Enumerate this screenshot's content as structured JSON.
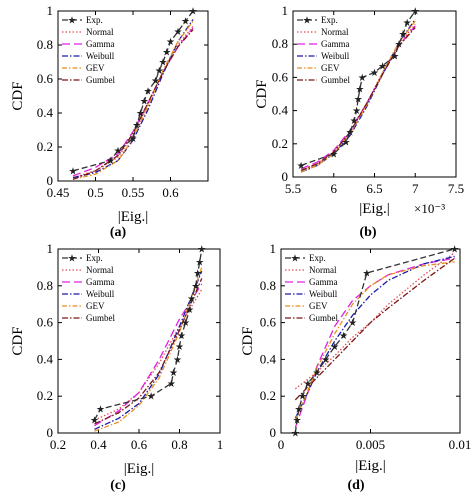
{
  "series_style": [
    {
      "name": "Exp.",
      "color": "#333333",
      "dash": "6,3",
      "marker": "★"
    },
    {
      "name": "Normal",
      "color": "#e05050",
      "dash": "1.5,2",
      "marker": ""
    },
    {
      "name": "Gamma",
      "color": "#e020e0",
      "dash": "8,4",
      "marker": ""
    },
    {
      "name": "Weibull",
      "color": "#1a1aa8",
      "dash": "6,2,1.5,2",
      "marker": ""
    },
    {
      "name": "GEV",
      "color": "#e89020",
      "dash": "5,2,1.5,2",
      "marker": ""
    },
    {
      "name": "Gumbel",
      "color": "#7a1818",
      "dash": "6,2,1.5,2",
      "marker": ""
    }
  ],
  "chart_data": [
    {
      "type": "line",
      "panel_label": "(a)",
      "ylabel": "CDF",
      "xlabel": "|Eig.|",
      "x_multiplier": "",
      "xlim": [
        0.45,
        0.65
      ],
      "ylim": [
        0,
        1
      ],
      "xticks": [
        "0.45",
        "0.5",
        "0.55",
        "0.6"
      ],
      "xtick_values": [
        0.45,
        0.5,
        0.55,
        0.6
      ],
      "yticks": [
        "0",
        "0.2",
        "0.4",
        "0.6",
        "0.8",
        "1"
      ],
      "yticks_shown": true,
      "legend": "top-left",
      "series": [
        {
          "name": "Exp.",
          "x": [
            0.47,
            0.52,
            0.53,
            0.55,
            0.555,
            0.56,
            0.565,
            0.57,
            0.58,
            0.585,
            0.59,
            0.595,
            0.6,
            0.61,
            0.62,
            0.63
          ],
          "y": [
            0.06,
            0.12,
            0.18,
            0.25,
            0.33,
            0.4,
            0.47,
            0.53,
            0.59,
            0.65,
            0.7,
            0.76,
            0.82,
            0.88,
            0.94,
            1.0
          ]
        },
        {
          "name": "Normal",
          "x": [
            0.47,
            0.5,
            0.53,
            0.55,
            0.57,
            0.59,
            0.61,
            0.63
          ],
          "y": [
            0.02,
            0.06,
            0.14,
            0.27,
            0.45,
            0.64,
            0.8,
            0.91
          ]
        },
        {
          "name": "Gamma",
          "x": [
            0.47,
            0.5,
            0.53,
            0.55,
            0.57,
            0.59,
            0.61,
            0.63
          ],
          "y": [
            0.03,
            0.08,
            0.16,
            0.29,
            0.46,
            0.64,
            0.79,
            0.9
          ]
        },
        {
          "name": "Weibull",
          "x": [
            0.47,
            0.5,
            0.53,
            0.55,
            0.57,
            0.59,
            0.61,
            0.63
          ],
          "y": [
            0.02,
            0.05,
            0.12,
            0.24,
            0.42,
            0.63,
            0.82,
            0.95
          ]
        },
        {
          "name": "GEV",
          "x": [
            0.47,
            0.5,
            0.53,
            0.55,
            0.57,
            0.59,
            0.61,
            0.63
          ],
          "y": [
            0.01,
            0.04,
            0.12,
            0.25,
            0.44,
            0.65,
            0.82,
            0.94
          ]
        },
        {
          "name": "Gumbel",
          "x": [
            0.47,
            0.5,
            0.53,
            0.55,
            0.57,
            0.59,
            0.61,
            0.63
          ],
          "y": [
            0.01,
            0.06,
            0.15,
            0.28,
            0.46,
            0.64,
            0.79,
            0.89
          ]
        }
      ]
    },
    {
      "type": "line",
      "panel_label": "(b)",
      "ylabel": "CDF",
      "xlabel": "|Eig.|",
      "x_multiplier": "×10⁻³",
      "xlim": [
        5.5,
        7.5
      ],
      "ylim": [
        0,
        1
      ],
      "xticks": [
        "5.5",
        "6",
        "6.5",
        "7",
        "7.5"
      ],
      "xtick_values": [
        5.5,
        6.0,
        6.5,
        7.0,
        7.5
      ],
      "yticks": [
        "0",
        "0.2",
        "0.4",
        "0.6",
        "0.8",
        "1"
      ],
      "yticks_shown": false,
      "legend": "top-left",
      "series": [
        {
          "name": "Exp.",
          "x": [
            5.6,
            6.0,
            6.15,
            6.2,
            6.25,
            6.28,
            6.3,
            6.32,
            6.35,
            6.5,
            6.6,
            6.75,
            6.8,
            6.85,
            6.9,
            7.0
          ],
          "y": [
            0.07,
            0.14,
            0.21,
            0.27,
            0.34,
            0.4,
            0.47,
            0.53,
            0.6,
            0.63,
            0.67,
            0.73,
            0.8,
            0.86,
            0.93,
            1.0
          ]
        },
        {
          "name": "Normal",
          "x": [
            5.6,
            5.8,
            6.0,
            6.2,
            6.4,
            6.6,
            6.8,
            7.0
          ],
          "y": [
            0.04,
            0.08,
            0.15,
            0.27,
            0.44,
            0.63,
            0.8,
            0.92
          ]
        },
        {
          "name": "Gamma",
          "x": [
            5.6,
            5.8,
            6.0,
            6.2,
            6.4,
            6.6,
            6.8,
            7.0
          ],
          "y": [
            0.05,
            0.09,
            0.16,
            0.28,
            0.44,
            0.62,
            0.79,
            0.91
          ]
        },
        {
          "name": "Weibull",
          "x": [
            5.6,
            5.8,
            6.0,
            6.2,
            6.4,
            6.6,
            6.8,
            7.0
          ],
          "y": [
            0.03,
            0.07,
            0.14,
            0.25,
            0.42,
            0.62,
            0.81,
            0.95
          ]
        },
        {
          "name": "GEV",
          "x": [
            5.6,
            5.8,
            6.0,
            6.2,
            6.4,
            6.6,
            6.8,
            7.0
          ],
          "y": [
            0.03,
            0.07,
            0.14,
            0.26,
            0.43,
            0.63,
            0.81,
            0.94
          ]
        },
        {
          "name": "Gumbel",
          "x": [
            5.6,
            5.8,
            6.0,
            6.2,
            6.4,
            6.6,
            6.8,
            7.0
          ],
          "y": [
            0.04,
            0.08,
            0.15,
            0.27,
            0.44,
            0.62,
            0.79,
            0.9
          ]
        }
      ]
    },
    {
      "type": "line",
      "panel_label": "(c)",
      "ylabel": "CDF",
      "xlabel": "|Eig.|",
      "x_multiplier": "",
      "xlim": [
        0.2,
        1.0
      ],
      "ylim": [
        0,
        1
      ],
      "xticks": [
        "0.2",
        "0.4",
        "0.6",
        "0.8",
        "1"
      ],
      "xtick_values": [
        0.2,
        0.4,
        0.6,
        0.8,
        1.0
      ],
      "yticks": [
        "0",
        "0.2",
        "0.4",
        "0.6",
        "0.8",
        "1"
      ],
      "yticks_shown": true,
      "legend": "top-left",
      "series": [
        {
          "name": "Exp.",
          "x": [
            0.38,
            0.41,
            0.66,
            0.76,
            0.77,
            0.79,
            0.8,
            0.81,
            0.83,
            0.85,
            0.86,
            0.88,
            0.89,
            0.9,
            0.91
          ],
          "y": [
            0.07,
            0.13,
            0.2,
            0.27,
            0.33,
            0.4,
            0.47,
            0.53,
            0.6,
            0.67,
            0.73,
            0.8,
            0.87,
            0.93,
            1.0
          ]
        },
        {
          "name": "Normal",
          "x": [
            0.38,
            0.5,
            0.6,
            0.7,
            0.8,
            0.91
          ],
          "y": [
            0.07,
            0.13,
            0.22,
            0.38,
            0.58,
            0.78
          ]
        },
        {
          "name": "Gamma",
          "x": [
            0.38,
            0.5,
            0.6,
            0.7,
            0.8,
            0.91
          ],
          "y": [
            0.04,
            0.12,
            0.22,
            0.4,
            0.62,
            0.81
          ]
        },
        {
          "name": "Weibull",
          "x": [
            0.38,
            0.5,
            0.6,
            0.7,
            0.8,
            0.91
          ],
          "y": [
            0.02,
            0.08,
            0.16,
            0.32,
            0.58,
            0.88
          ]
        },
        {
          "name": "GEV",
          "x": [
            0.38,
            0.5,
            0.6,
            0.7,
            0.8,
            0.91
          ],
          "y": [
            0.01,
            0.06,
            0.15,
            0.3,
            0.55,
            0.9
          ]
        },
        {
          "name": "Gumbel",
          "x": [
            0.38,
            0.5,
            0.6,
            0.7,
            0.8,
            0.91
          ],
          "y": [
            0.05,
            0.11,
            0.19,
            0.33,
            0.56,
            0.84
          ]
        }
      ]
    },
    {
      "type": "line",
      "panel_label": "(d)",
      "ylabel": "CDF",
      "xlabel": "|Eig.|",
      "x_multiplier": "",
      "xlim": [
        0,
        0.01
      ],
      "ylim": [
        0,
        1
      ],
      "xticks": [
        "0",
        "0.005",
        "0.01"
      ],
      "xtick_values": [
        0,
        0.005,
        0.01
      ],
      "yticks": [
        "0",
        "0.2",
        "0.4",
        "0.6",
        "0.8",
        "1"
      ],
      "yticks_shown": true,
      "legend": "top-left",
      "series": [
        {
          "name": "Exp.",
          "x": [
            0.0008,
            0.0009,
            0.001,
            0.0012,
            0.0015,
            0.002,
            0.0025,
            0.003,
            0.0035,
            0.004,
            0.0048,
            0.0097
          ],
          "y": [
            0.0,
            0.07,
            0.13,
            0.2,
            0.27,
            0.33,
            0.4,
            0.47,
            0.53,
            0.6,
            0.87,
            1.0
          ]
        },
        {
          "name": "Normal",
          "x": [
            0.0008,
            0.002,
            0.003,
            0.004,
            0.005,
            0.006,
            0.008,
            0.0097
          ],
          "y": [
            0.24,
            0.33,
            0.42,
            0.52,
            0.6,
            0.7,
            0.86,
            0.98
          ]
        },
        {
          "name": "Gamma",
          "x": [
            0.0008,
            0.0015,
            0.002,
            0.003,
            0.004,
            0.005,
            0.006,
            0.008,
            0.0097
          ],
          "y": [
            0.03,
            0.22,
            0.36,
            0.58,
            0.72,
            0.8,
            0.86,
            0.92,
            0.95
          ]
        },
        {
          "name": "Weibull",
          "x": [
            0.0008,
            0.0015,
            0.002,
            0.003,
            0.004,
            0.005,
            0.006,
            0.008,
            0.0097
          ],
          "y": [
            0.08,
            0.22,
            0.33,
            0.5,
            0.64,
            0.75,
            0.83,
            0.92,
            0.96
          ]
        },
        {
          "name": "GEV",
          "x": [
            0.0008,
            0.0015,
            0.002,
            0.003,
            0.004,
            0.005,
            0.006,
            0.008,
            0.0097
          ],
          "y": [
            0.07,
            0.23,
            0.35,
            0.54,
            0.7,
            0.8,
            0.86,
            0.91,
            0.93
          ]
        },
        {
          "name": "Gumbel",
          "x": [
            0.0008,
            0.002,
            0.003,
            0.004,
            0.005,
            0.006,
            0.008,
            0.0097
          ],
          "y": [
            0.18,
            0.3,
            0.4,
            0.5,
            0.6,
            0.68,
            0.83,
            0.95
          ]
        }
      ]
    }
  ]
}
